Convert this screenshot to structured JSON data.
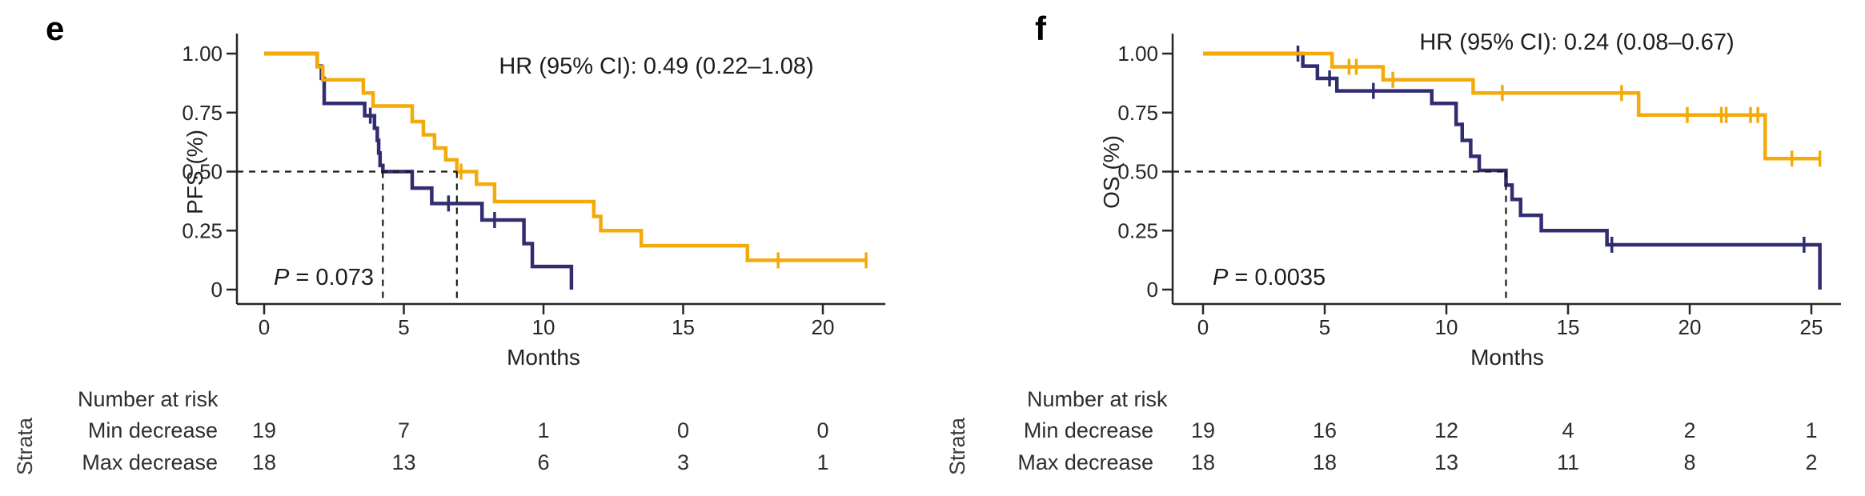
{
  "figure": {
    "background": "#ffffff",
    "number_at_risk_label": "Number at risk",
    "strata_header": "Strata"
  },
  "colors": {
    "min_decrease": "#312d70",
    "max_decrease": "#f4aa08",
    "axis": "#262626",
    "dashed": "#1a1a1a",
    "text": "#262626"
  },
  "chart_data": [
    {
      "type": "line",
      "subtype": "kaplan-meier-step",
      "panel_label": "e",
      "ylabel": "PFS (%)",
      "xlabel": "Months",
      "hr_annotation": "HR (95% CI): 0.49 (0.22–1.08)",
      "p_label": "P",
      "p_rest": " = 0.073",
      "xlim": [
        0,
        21.6
      ],
      "ylim": [
        0,
        1
      ],
      "x_ticks": [
        0,
        5,
        10,
        15,
        20
      ],
      "y_ticks": [
        {
          "label": "1.00",
          "value": 1.0
        },
        {
          "label": "0.75",
          "value": 0.75
        },
        {
          "label": "0.50",
          "value": 0.5
        },
        {
          "label": "0.25",
          "value": 0.25
        },
        {
          "label": "0",
          "value": 0
        }
      ],
      "median_y": 0.5,
      "median_x_values": [
        4.25,
        6.9
      ],
      "series": [
        {
          "name": "Min decrease",
          "color_key": "min_decrease",
          "steps": [
            [
              0,
              1.0
            ],
            [
              1.9,
              0.947
            ],
            [
              2.05,
              0.895
            ],
            [
              2.15,
              0.789
            ],
            [
              3.6,
              0.737
            ],
            [
              3.95,
              0.684
            ],
            [
              4.05,
              0.632
            ],
            [
              4.1,
              0.579
            ],
            [
              4.15,
              0.526
            ],
            [
              4.25,
              0.5
            ],
            [
              5.3,
              0.43
            ],
            [
              6.0,
              0.365
            ],
            [
              7.8,
              0.295
            ],
            [
              9.3,
              0.195
            ],
            [
              9.6,
              0.098
            ],
            [
              11.0,
              0
            ]
          ],
          "censors": [
            [
              3.8,
              0.737
            ],
            [
              6.6,
              0.365
            ],
            [
              8.25,
              0.295
            ]
          ]
        },
        {
          "name": "Max decrease",
          "color_key": "max_decrease",
          "steps": [
            [
              0,
              1.0
            ],
            [
              1.9,
              0.944
            ],
            [
              2.1,
              0.889
            ],
            [
              3.55,
              0.833
            ],
            [
              3.9,
              0.778
            ],
            [
              5.3,
              0.712
            ],
            [
              5.7,
              0.656
            ],
            [
              6.1,
              0.6
            ],
            [
              6.5,
              0.55
            ],
            [
              6.9,
              0.5
            ],
            [
              7.6,
              0.447
            ],
            [
              8.25,
              0.373
            ],
            [
              11.8,
              0.31
            ],
            [
              12.05,
              0.25
            ],
            [
              13.5,
              0.186
            ],
            [
              17.3,
              0.124
            ],
            [
              21.6,
              0.124
            ]
          ],
          "censors": [
            [
              7.05,
              0.5
            ],
            [
              18.4,
              0.124
            ],
            [
              21.55,
              0.124
            ]
          ]
        }
      ],
      "risk_table": {
        "months": [
          0,
          5,
          10,
          15,
          20
        ],
        "rows": [
          {
            "name": "Min decrease",
            "color_key": "min_decrease",
            "counts": [
              19,
              7,
              1,
              0,
              0
            ]
          },
          {
            "name": "Max decrease",
            "color_key": "max_decrease",
            "counts": [
              18,
              13,
              6,
              3,
              1
            ]
          }
        ]
      }
    },
    {
      "type": "line",
      "subtype": "kaplan-meier-step",
      "panel_label": "f",
      "ylabel": "OS (%)",
      "xlabel": "Months",
      "hr_annotation": "HR (95% CI): 0.24 (0.08–0.67)",
      "p_label": "P",
      "p_rest": " = 0.0035",
      "xlim": [
        0,
        25.4
      ],
      "ylim": [
        0,
        1
      ],
      "x_ticks": [
        0,
        5,
        10,
        15,
        20,
        25
      ],
      "y_ticks": [
        {
          "label": "1.00",
          "value": 1.0
        },
        {
          "label": "0.75",
          "value": 0.75
        },
        {
          "label": "0.50",
          "value": 0.5
        },
        {
          "label": "0.25",
          "value": 0.25
        },
        {
          "label": "0",
          "value": 0
        }
      ],
      "median_y": 0.5,
      "median_x_values": [
        12.45
      ],
      "series": [
        {
          "name": "Min decrease",
          "color_key": "min_decrease",
          "steps": [
            [
              0,
              1.0
            ],
            [
              4.1,
              0.947
            ],
            [
              4.7,
              0.895
            ],
            [
              5.5,
              0.842
            ],
            [
              9.4,
              0.789
            ],
            [
              10.4,
              0.7
            ],
            [
              10.65,
              0.632
            ],
            [
              11.0,
              0.565
            ],
            [
              11.35,
              0.505
            ],
            [
              12.45,
              0.443
            ],
            [
              12.7,
              0.382
            ],
            [
              13.05,
              0.315
            ],
            [
              13.9,
              0.25
            ],
            [
              16.6,
              0.19
            ],
            [
              25.35,
              0
            ]
          ],
          "censors": [
            [
              3.9,
              1.0
            ],
            [
              5.2,
              0.895
            ],
            [
              7.0,
              0.842
            ],
            [
              16.8,
              0.19
            ],
            [
              24.7,
              0.19
            ]
          ]
        },
        {
          "name": "Max decrease",
          "color_key": "max_decrease",
          "steps": [
            [
              0,
              1.0
            ],
            [
              5.3,
              0.944
            ],
            [
              7.4,
              0.889
            ],
            [
              11.1,
              0.833
            ],
            [
              17.9,
              0.74
            ],
            [
              23.1,
              0.555
            ],
            [
              25.4,
              0.555
            ]
          ],
          "censors": [
            [
              6.0,
              0.944
            ],
            [
              6.3,
              0.944
            ],
            [
              7.8,
              0.889
            ],
            [
              12.3,
              0.833
            ],
            [
              17.2,
              0.833
            ],
            [
              19.9,
              0.74
            ],
            [
              21.3,
              0.74
            ],
            [
              21.5,
              0.74
            ],
            [
              22.5,
              0.74
            ],
            [
              22.8,
              0.74
            ],
            [
              24.2,
              0.555
            ],
            [
              25.35,
              0.555
            ]
          ]
        }
      ],
      "risk_table": {
        "months": [
          0,
          5,
          10,
          15,
          20,
          25
        ],
        "rows": [
          {
            "name": "Min decrease",
            "color_key": "min_decrease",
            "counts": [
              19,
              16,
              12,
              4,
              2,
              1
            ]
          },
          {
            "name": "Max decrease",
            "color_key": "max_decrease",
            "counts": [
              18,
              18,
              13,
              11,
              8,
              2
            ]
          }
        ]
      }
    }
  ]
}
